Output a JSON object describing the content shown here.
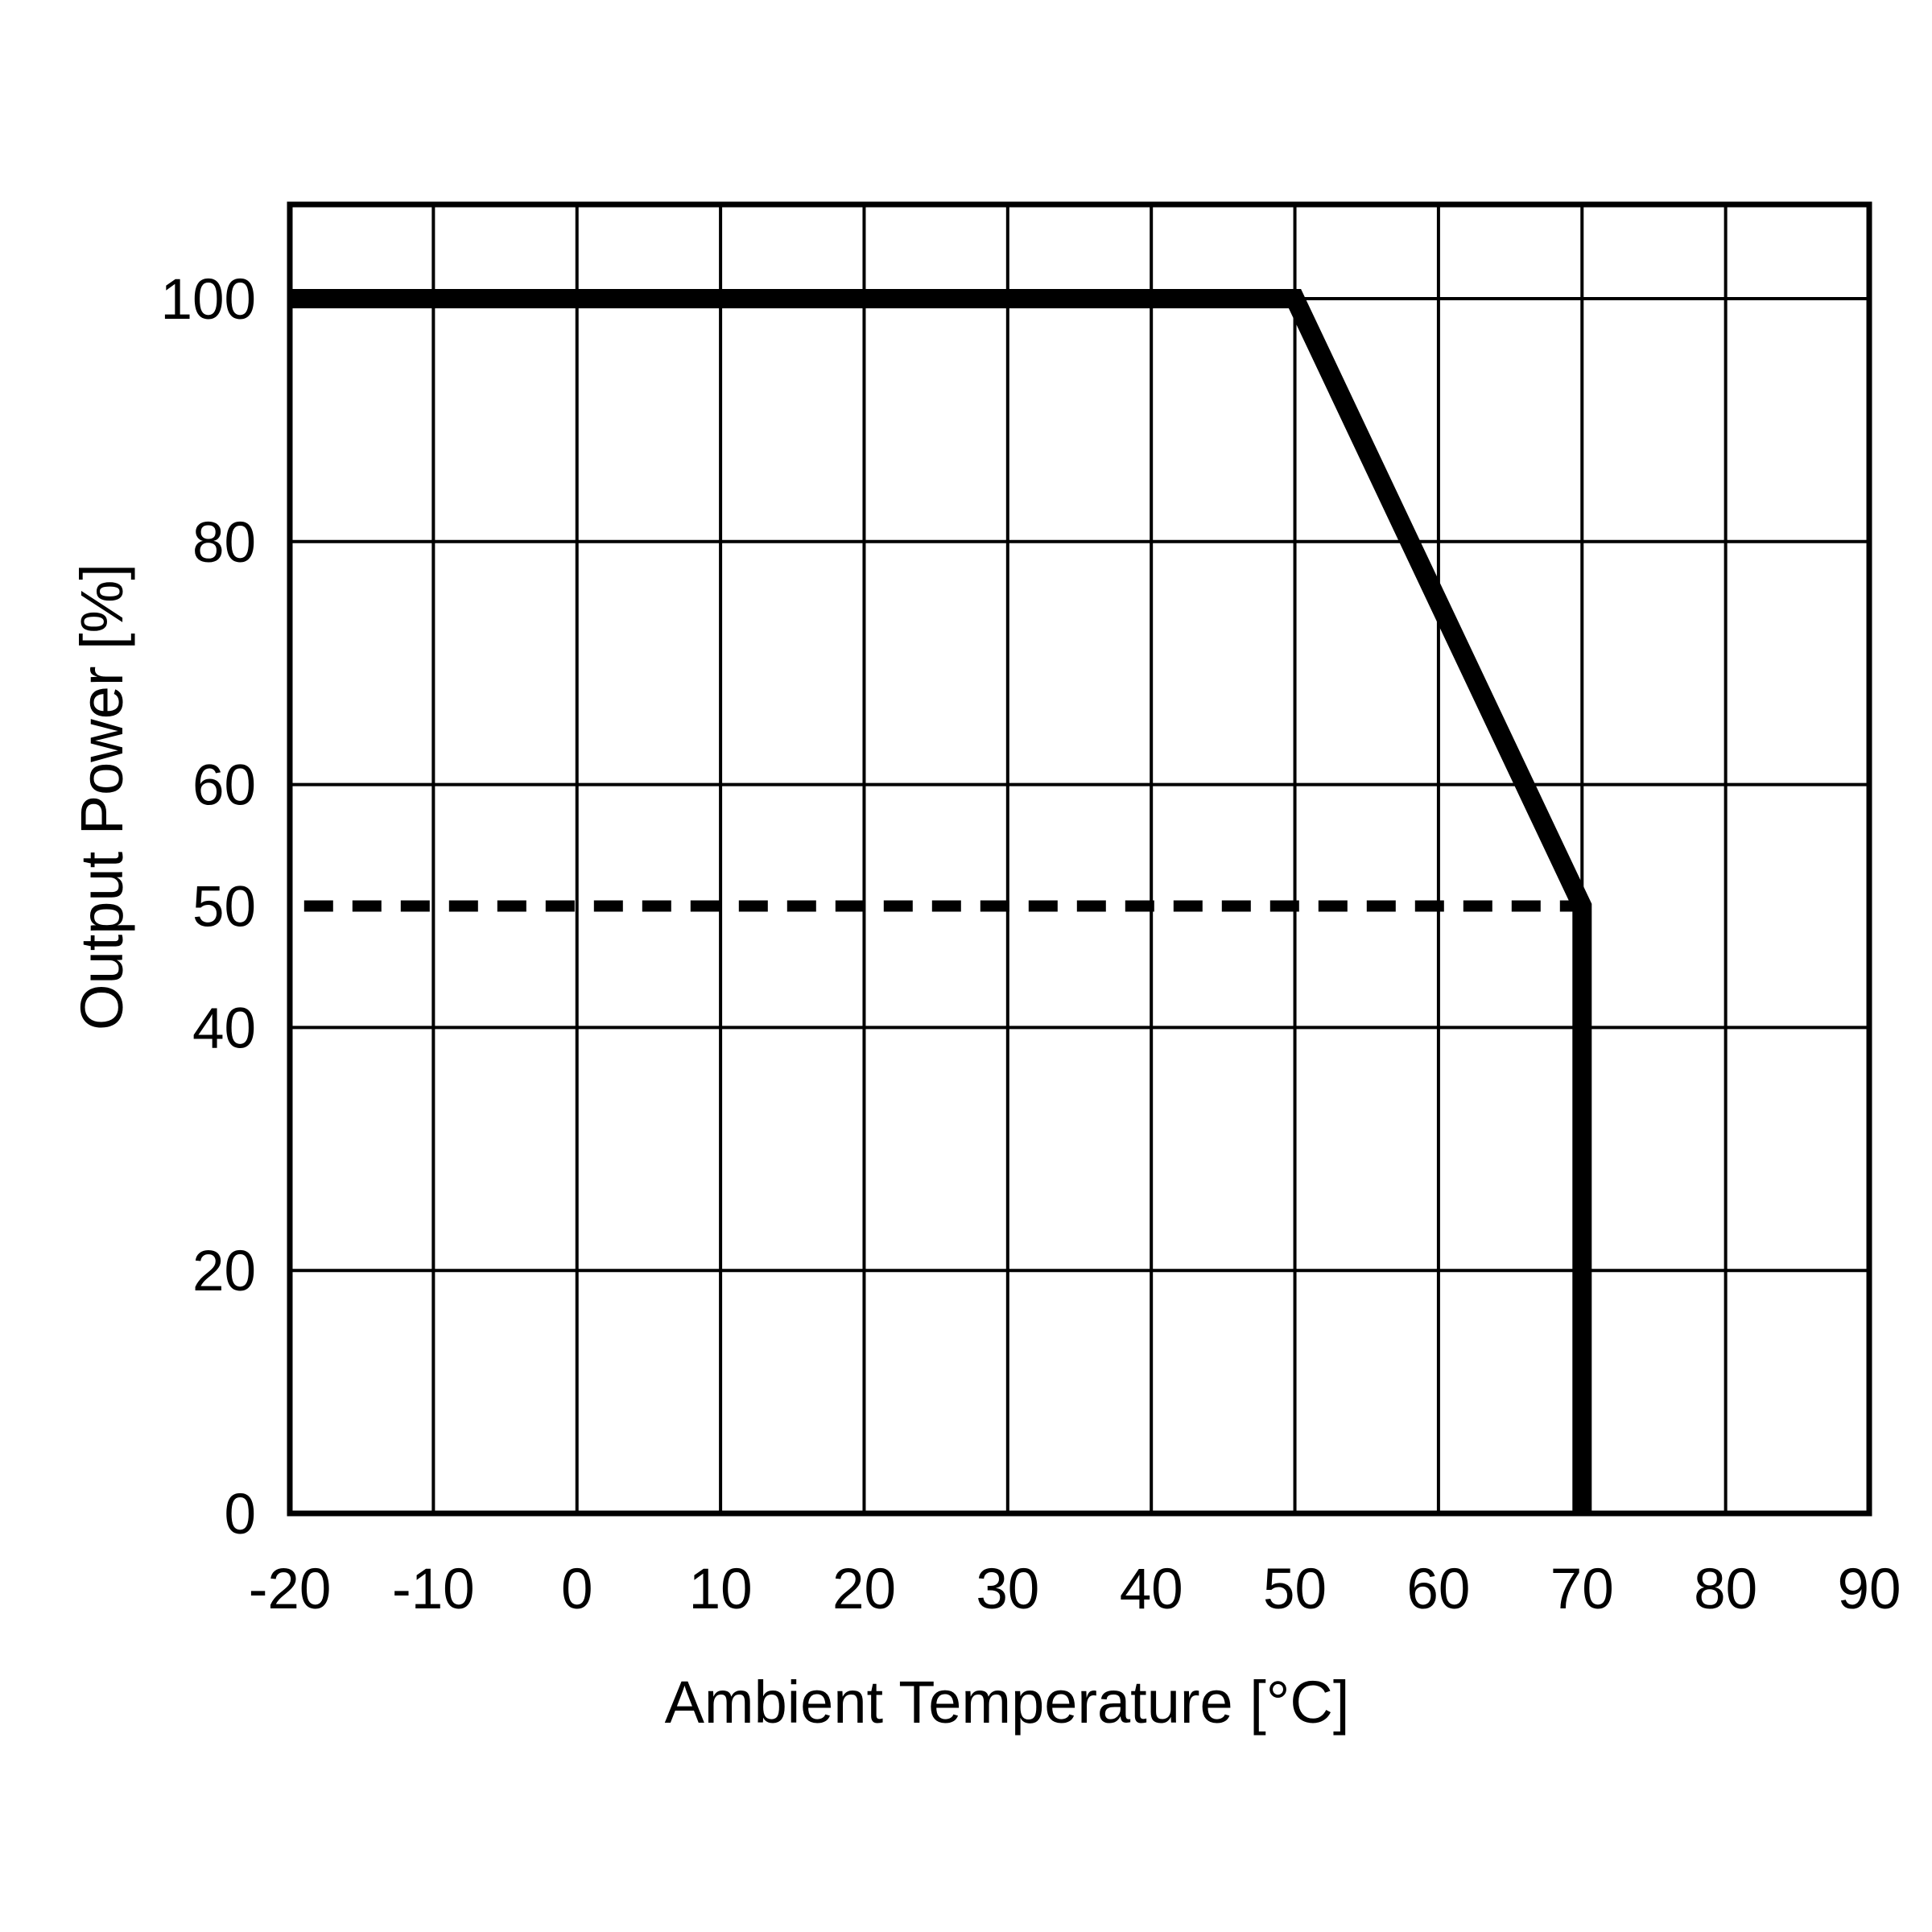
{
  "chart_data": {
    "type": "line",
    "title": "",
    "xlabel": "Ambient Temperature [°C]",
    "ylabel": "Output Power [%]",
    "xlim": [
      -20,
      90
    ],
    "ylim": [
      0,
      108
    ],
    "x_ticks": [
      -20,
      -10,
      0,
      10,
      20,
      30,
      40,
      50,
      60,
      70,
      80,
      90
    ],
    "y_ticks": [
      0,
      20,
      40,
      50,
      60,
      80,
      100
    ],
    "x_tick_labels": [
      "-20",
      "-10",
      "0",
      "10",
      "20",
      "30",
      "40",
      "50",
      "60",
      "70",
      "80",
      "90"
    ],
    "y_tick_labels": [
      "0",
      "20",
      "40",
      "50",
      "60",
      "80",
      "100"
    ],
    "y_gridlines": [
      20,
      40,
      60,
      80,
      100
    ],
    "grid": true,
    "legend": "none",
    "series": [
      {
        "style": "solid-thick",
        "color": "#000000",
        "points": [
          [
            -20,
            100
          ],
          [
            50,
            100
          ],
          [
            70,
            50
          ],
          [
            70,
            0
          ]
        ]
      },
      {
        "style": "dashed",
        "color": "#000000",
        "points": [
          [
            -19,
            50
          ],
          [
            70,
            50
          ]
        ]
      }
    ]
  }
}
